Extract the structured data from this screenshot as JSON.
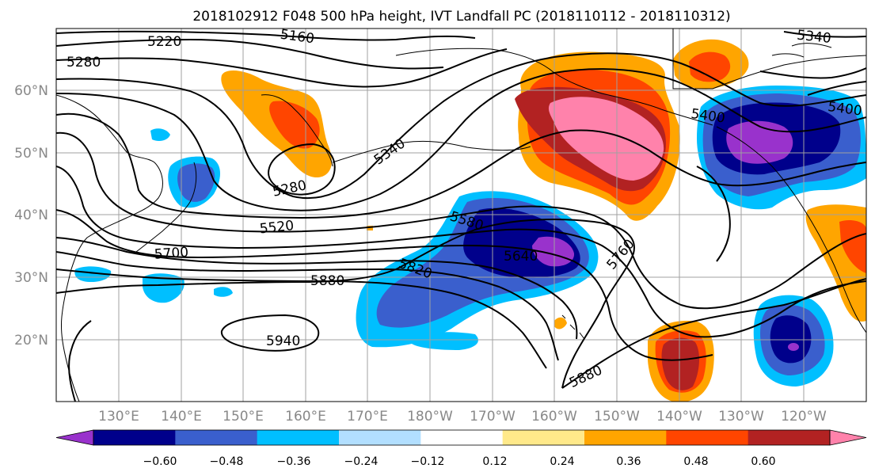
{
  "title": "2018102912 F048 500 hPa height, IVT Landfall PC (2018110112 - 2018110312)",
  "lat_labels": [
    "60°N",
    "50°N",
    "40°N",
    "30°N",
    "20°N"
  ],
  "lon_labels": [
    "130°E",
    "140°E",
    "150°E",
    "160°E",
    "170°E",
    "180°W",
    "170°W",
    "160°W",
    "150°W",
    "140°W",
    "130°W",
    "120°W"
  ],
  "contour_labels": [
    "5220",
    "5160",
    "5280",
    "5340",
    "5280",
    "5520",
    "5580",
    "5700",
    "5640",
    "5760",
    "5820",
    "5880",
    "5940",
    "5880",
    "5340",
    "5400",
    "5400"
  ],
  "colorbar": {
    "colors": [
      "#9932cc",
      "#00008b",
      "#3a5fcd",
      "#00bfff",
      "#b2dfff",
      "#ffffff",
      "#ffe98a",
      "#ffa500",
      "#ff4500",
      "#b22222",
      "#ff82ab"
    ],
    "tick_labels": [
      "−0.60",
      "−0.48",
      "−0.36",
      "−0.24",
      "−0.12",
      "0.12",
      "0.24",
      "0.36",
      "0.48",
      "0.60"
    ]
  }
}
